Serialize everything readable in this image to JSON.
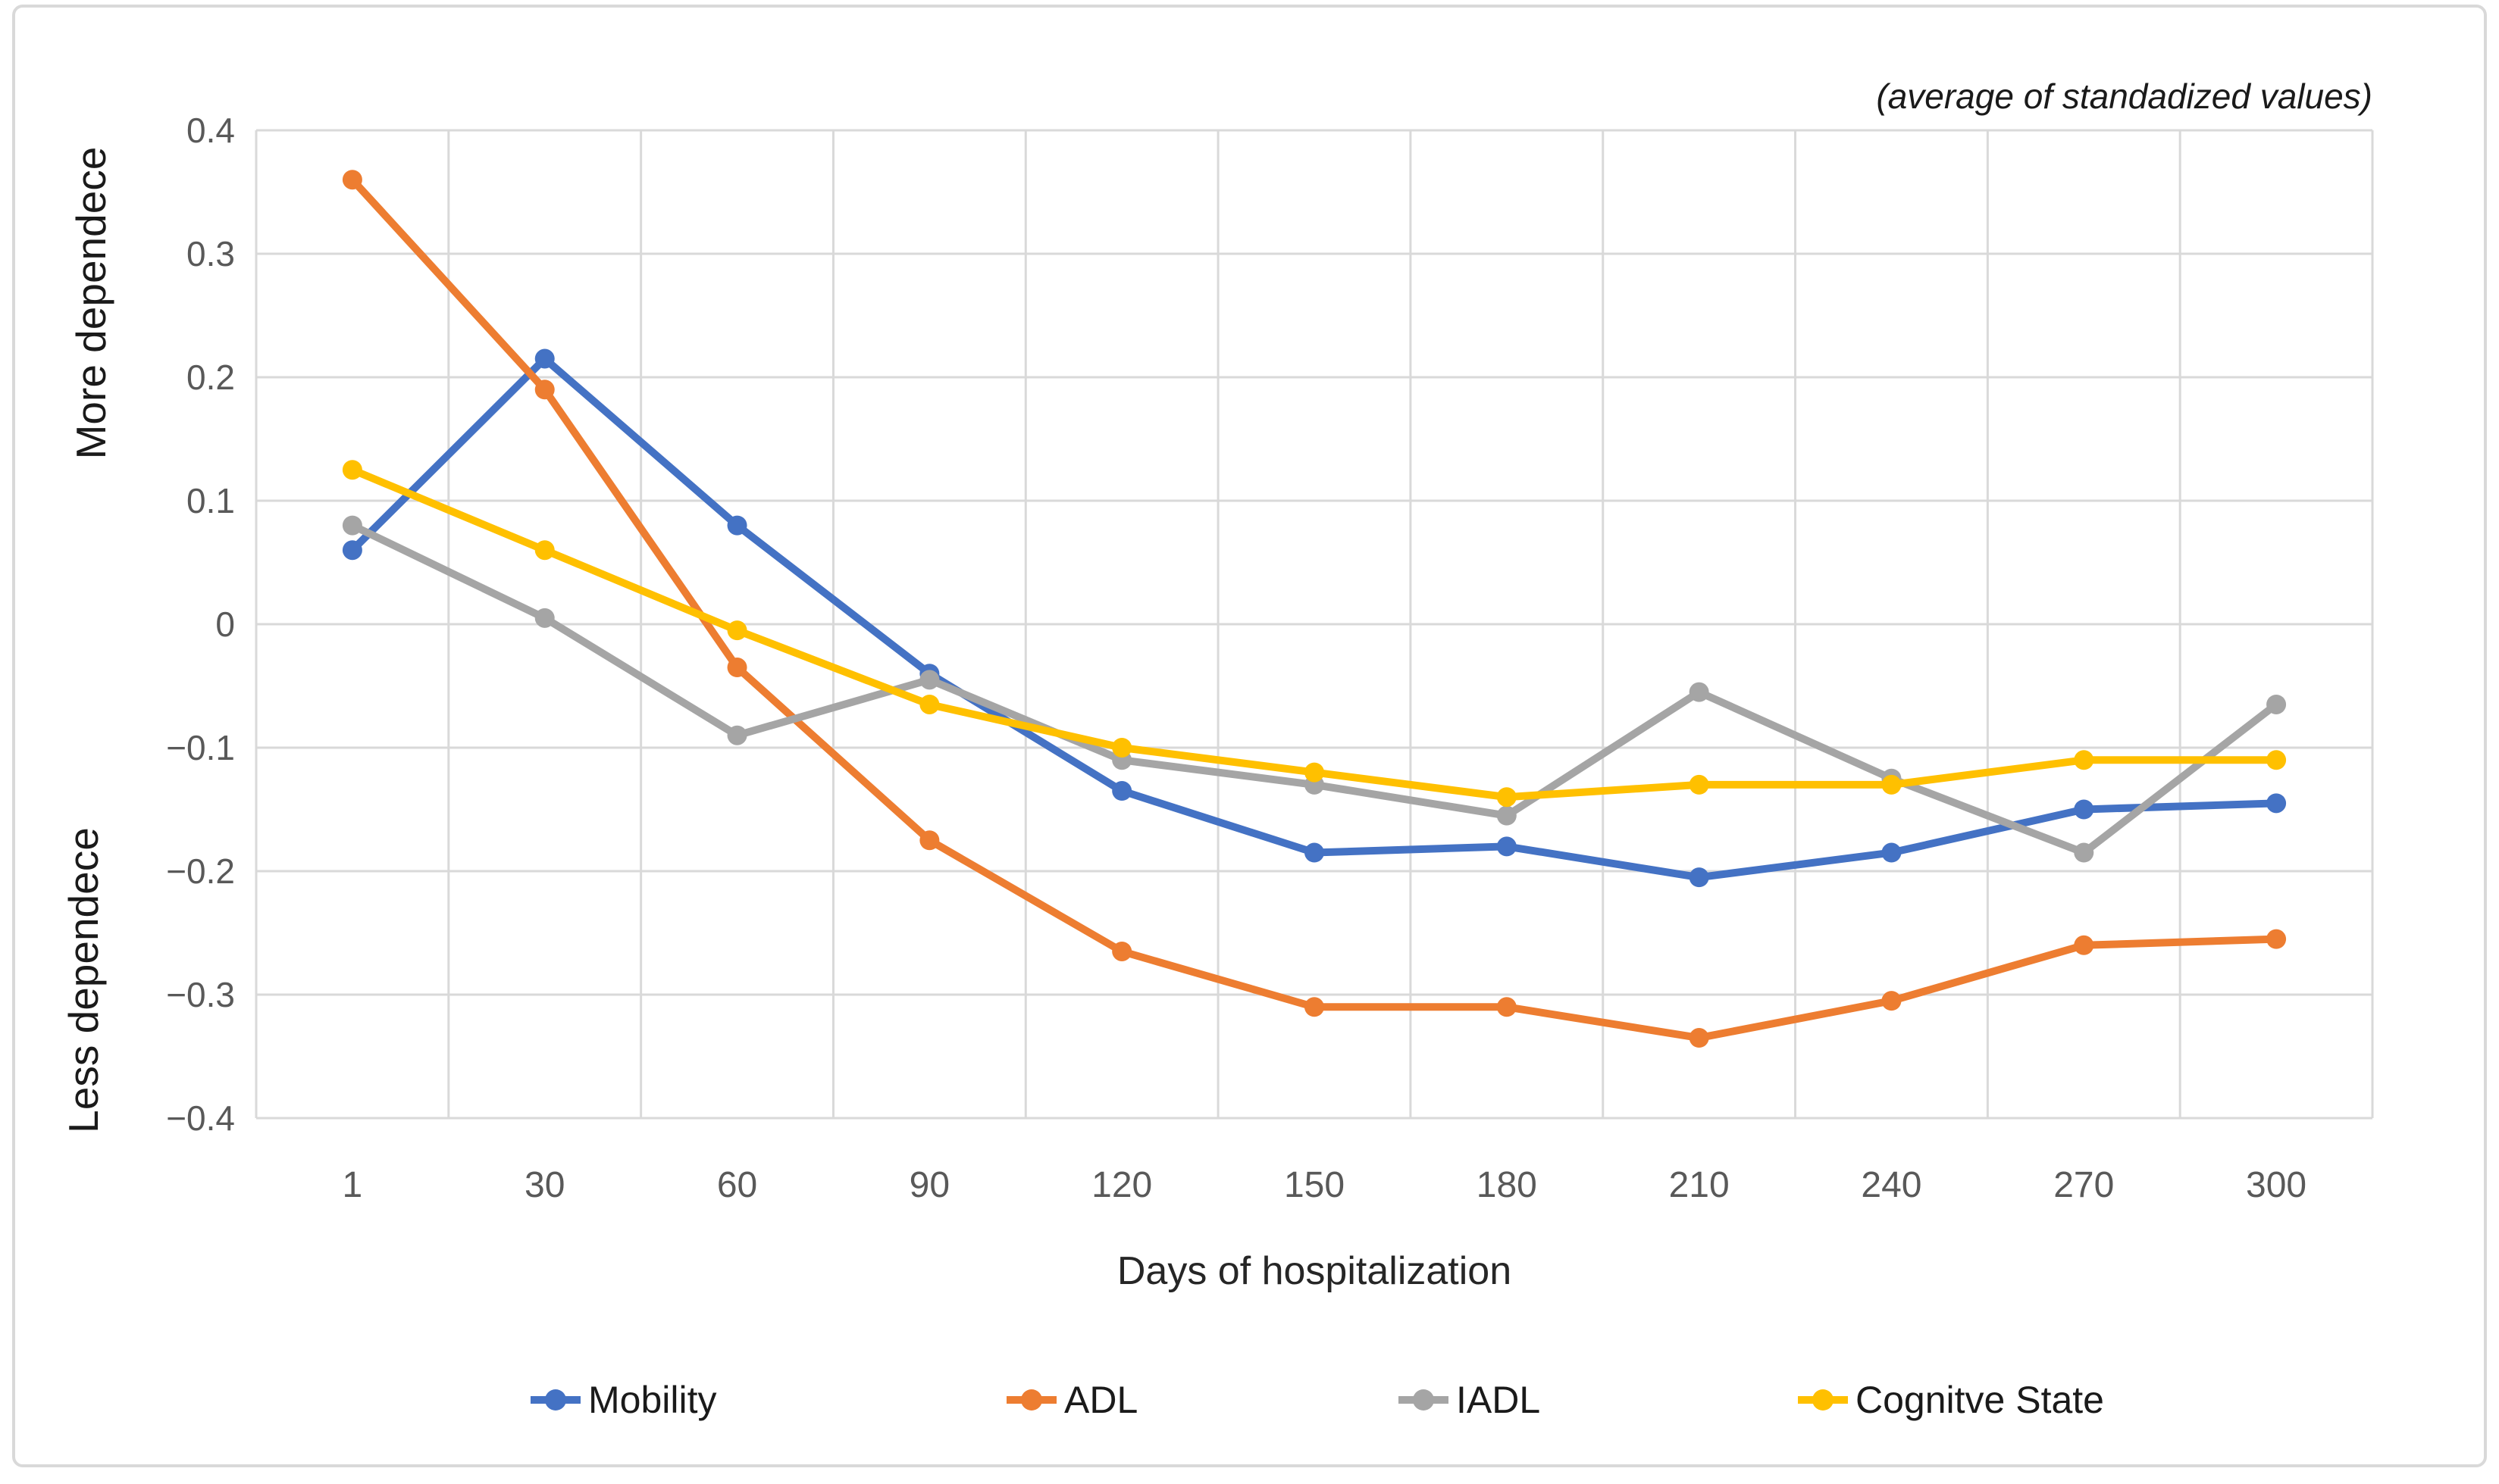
{
  "figure": {
    "background": "#ffffff",
    "border_color": "#d9d9d9"
  },
  "chart_data": {
    "type": "line",
    "title": "",
    "annotation": "(average of standadized values)",
    "xlabel": "Days of hospitalization",
    "ylabel_more": "More dependece",
    "ylabel_less": "Less dependece",
    "categories": [
      "1",
      "30",
      "60",
      "90",
      "120",
      "150",
      "180",
      "210",
      "240",
      "270",
      "300"
    ],
    "series": [
      {
        "name": "Mobility",
        "color": "#4472C4",
        "values": [
          0.06,
          0.215,
          0.08,
          -0.04,
          -0.135,
          -0.185,
          -0.18,
          -0.205,
          -0.185,
          -0.15,
          -0.145
        ]
      },
      {
        "name": "ADL",
        "color": "#ED7D31",
        "values": [
          0.36,
          0.19,
          -0.035,
          -0.175,
          -0.265,
          -0.31,
          -0.31,
          -0.335,
          -0.305,
          -0.26,
          -0.255
        ]
      },
      {
        "name": "IADL",
        "color": "#A5A5A5",
        "values": [
          0.08,
          0.005,
          -0.09,
          -0.045,
          -0.11,
          -0.13,
          -0.155,
          -0.055,
          -0.125,
          -0.185,
          -0.065
        ]
      },
      {
        "name": "Cognitve State",
        "color": "#FFC000",
        "values": [
          0.125,
          0.06,
          -0.005,
          -0.065,
          -0.1,
          -0.12,
          -0.14,
          -0.13,
          -0.13,
          -0.11,
          -0.11
        ]
      }
    ],
    "ylim": [
      -0.4,
      0.4
    ],
    "ytick_step": 0.1,
    "ytick_labels": [
      "0.4",
      "0.3",
      "0.2",
      "0.1",
      "0",
      "−0.1",
      "−0.2",
      "−0.3",
      "−0.4"
    ],
    "grid": true,
    "gridline_color": "#d9d9d9",
    "tick_label_color": "#595959",
    "legend_position": "bottom"
  },
  "legend_x_positions": [
    700,
    1328,
    1845,
    2372
  ]
}
